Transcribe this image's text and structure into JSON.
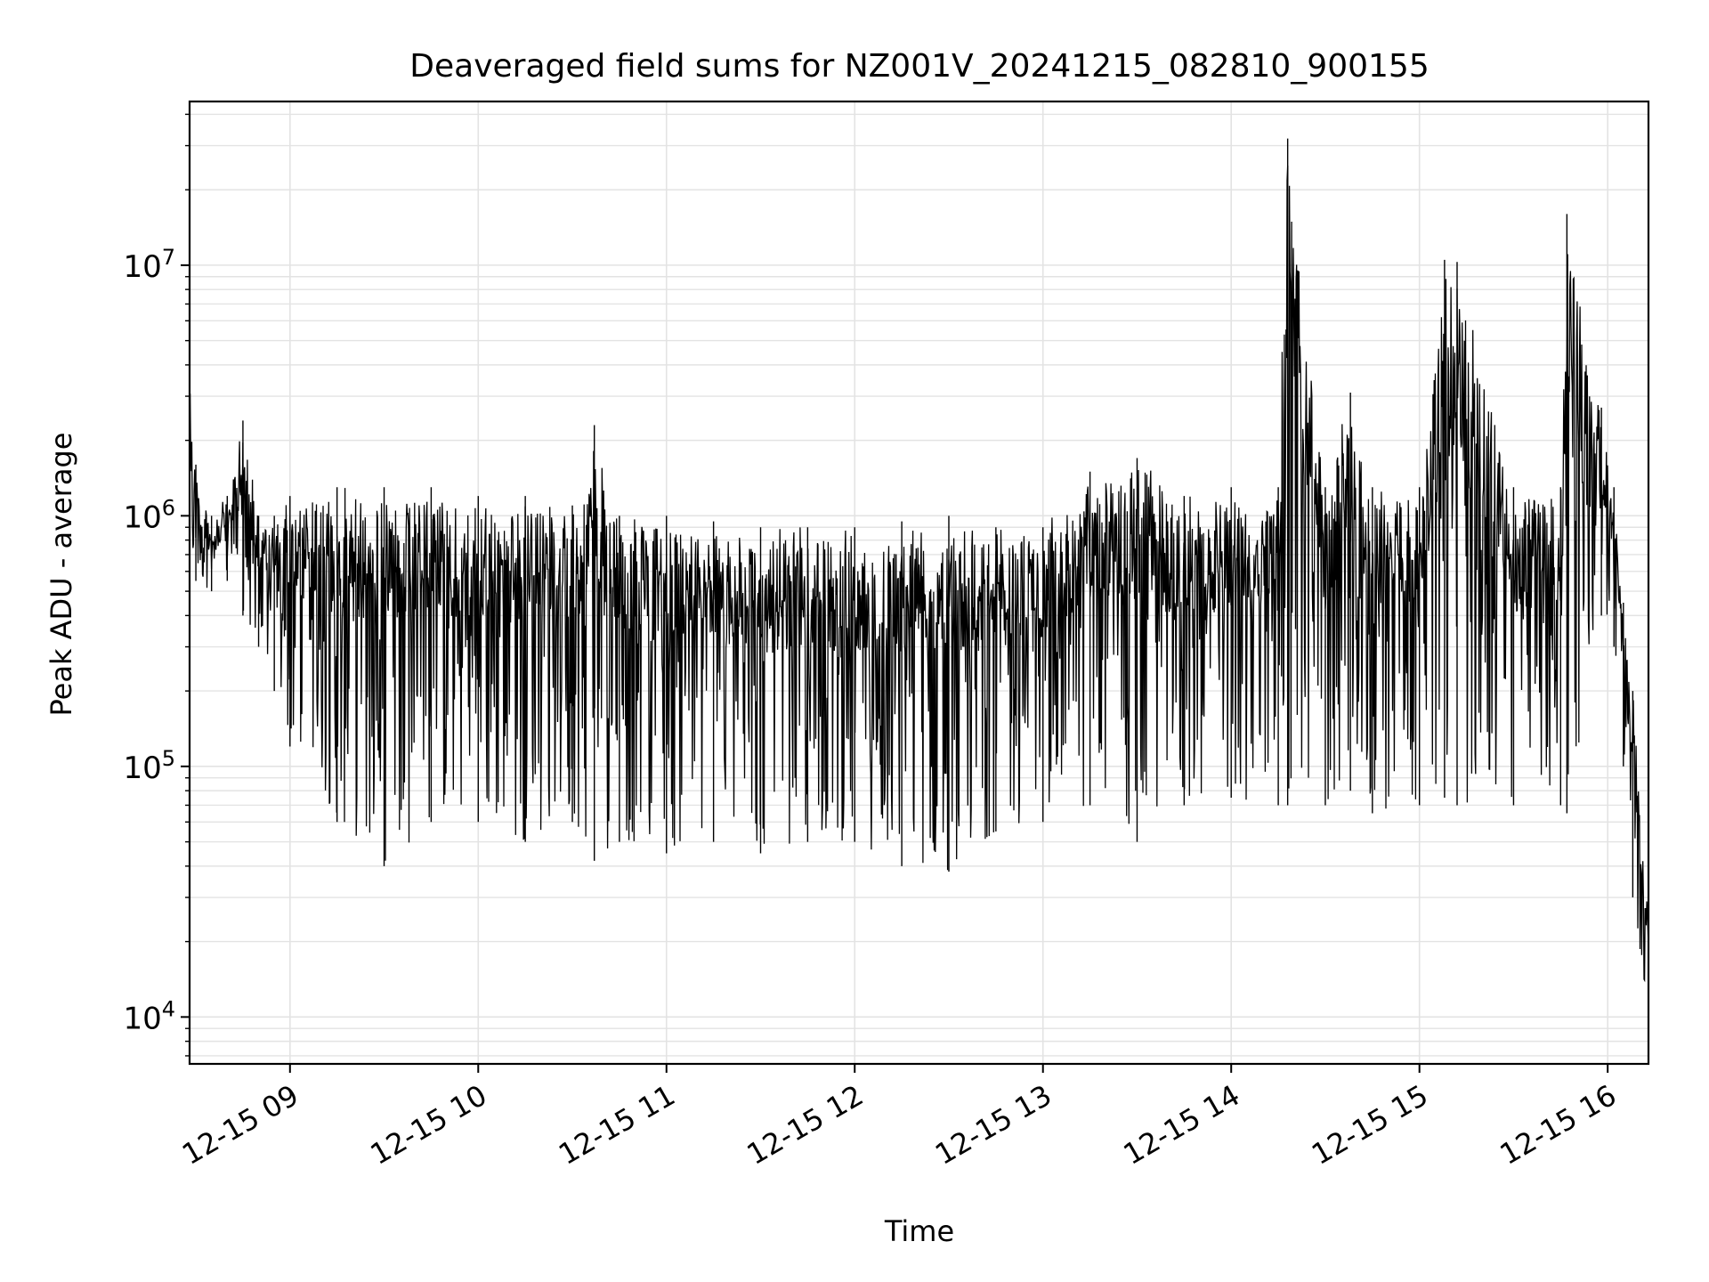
{
  "chart_data": {
    "type": "line",
    "title": "Deaveraged field sums for NZ001V_20241215_082810_900155",
    "xlabel": "Time",
    "ylabel": "Peak ADU - average",
    "yscale": "log",
    "ylim": [
      6500,
      45000000
    ],
    "xlim": [
      "2024-12-15 08:28",
      "2024-12-15 16:13"
    ],
    "grid": true,
    "x_ticks": [
      {
        "label": "12-15 09",
        "value": "2024-12-15 09:00"
      },
      {
        "label": "12-15 10",
        "value": "2024-12-15 10:00"
      },
      {
        "label": "12-15 11",
        "value": "2024-12-15 11:00"
      },
      {
        "label": "12-15 12",
        "value": "2024-12-15 12:00"
      },
      {
        "label": "12-15 13",
        "value": "2024-12-15 13:00"
      },
      {
        "label": "12-15 14",
        "value": "2024-12-15 14:00"
      },
      {
        "label": "12-15 15",
        "value": "2024-12-15 15:00"
      },
      {
        "label": "12-15 16",
        "value": "2024-12-15 16:00"
      }
    ],
    "y_ticks": [
      {
        "base": "10",
        "exp": "4",
        "value": 10000
      },
      {
        "base": "10",
        "exp": "5",
        "value": 100000
      },
      {
        "base": "10",
        "exp": "6",
        "value": 1000000
      },
      {
        "base": "10",
        "exp": "7",
        "value": 10000000
      }
    ],
    "series": [
      {
        "color": "#000000",
        "note_envelope": "approximate envelope of a dense noisy trace",
        "x": [
          "2024-12-15 08:28",
          "2024-12-15 08:30",
          "2024-12-15 08:35",
          "2024-12-15 08:40",
          "2024-12-15 08:45",
          "2024-12-15 08:50",
          "2024-12-15 08:55",
          "2024-12-15 09:00",
          "2024-12-15 09:15",
          "2024-12-15 09:30",
          "2024-12-15 09:45",
          "2024-12-15 10:00",
          "2024-12-15 10:15",
          "2024-12-15 10:30",
          "2024-12-15 10:37",
          "2024-12-15 10:45",
          "2024-12-15 11:00",
          "2024-12-15 11:15",
          "2024-12-15 11:30",
          "2024-12-15 11:45",
          "2024-12-15 12:00",
          "2024-12-15 12:15",
          "2024-12-15 12:30",
          "2024-12-15 12:45",
          "2024-12-15 13:00",
          "2024-12-15 13:15",
          "2024-12-15 13:30",
          "2024-12-15 13:45",
          "2024-12-15 14:00",
          "2024-12-15 14:15",
          "2024-12-15 14:18",
          "2024-12-15 14:30",
          "2024-12-15 14:38",
          "2024-12-15 14:45",
          "2024-12-15 15:00",
          "2024-12-15 15:08",
          "2024-12-15 15:12",
          "2024-12-15 15:30",
          "2024-12-15 15:45",
          "2024-12-15 15:47",
          "2024-12-15 15:58",
          "2024-12-15 16:02",
          "2024-12-15 16:05",
          "2024-12-15 16:08",
          "2024-12-15 16:13"
        ],
        "high": [
          3300000,
          1600000,
          1000000,
          1200000,
          2400000,
          1000000,
          1000000,
          1200000,
          1300000,
          1300000,
          1300000,
          1200000,
          1200000,
          1100000,
          2300000,
          1000000,
          1000000,
          950000,
          900000,
          900000,
          900000,
          950000,
          1000000,
          900000,
          900000,
          1500000,
          1700000,
          1200000,
          1300000,
          1300000,
          32000000,
          1300000,
          3100000,
          1300000,
          1300000,
          10500000,
          10300000,
          1300000,
          1300000,
          16000000,
          2700000,
          1300000,
          450000,
          200000,
          25000
        ],
        "low": [
          600000,
          550000,
          500000,
          550000,
          400000,
          300000,
          200000,
          120000,
          60000,
          40000,
          60000,
          60000,
          50000,
          60000,
          42000,
          50000,
          45000,
          50000,
          45000,
          50000,
          50000,
          40000,
          38000,
          55000,
          60000,
          70000,
          50000,
          70000,
          75000,
          70000,
          70000,
          70000,
          80000,
          65000,
          70000,
          75000,
          70000,
          70000,
          70000,
          65000,
          400000,
          300000,
          100000,
          30000,
          10000
        ]
      }
    ]
  }
}
